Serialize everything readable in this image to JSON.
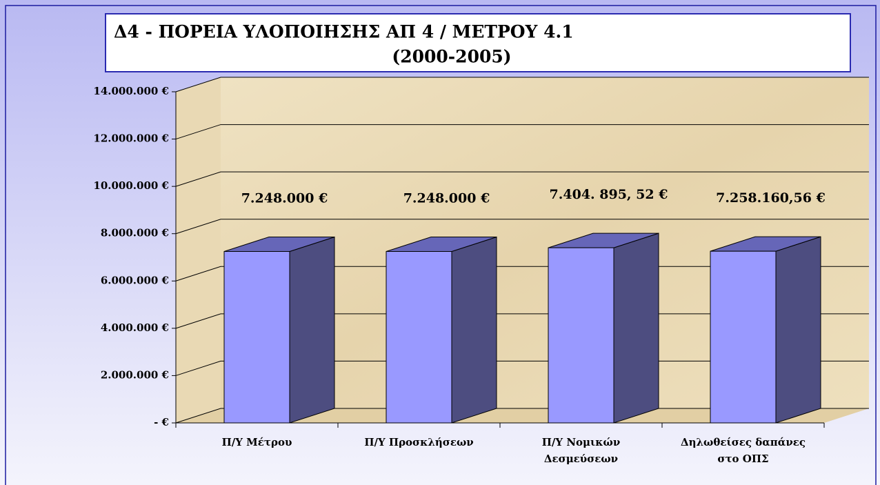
{
  "chart_data": {
    "type": "bar3d",
    "title": "Δ4 - ΠΟΡΕΙΑ ΥΛΟΠΟΙΗΣΗΣ ΑΠ 4 /  ΜΕΤΡΟΥ 4.1",
    "subtitle": "(2000-2005)",
    "categories": [
      "Π/Υ Μέτρου",
      "Π/Υ  Προσκλήσεων",
      "Π/Υ Νομικών Δεσμεύσεων",
      "Δηλωθείσες δαπάνες στο ΟΠΣ"
    ],
    "values": [
      7248000,
      7248000,
      7404895.52,
      7258160.56
    ],
    "value_labels": [
      "7.248.000 €",
      "7.248.000 €",
      "7.404. 895, 52 €",
      "7.258.160,56 €"
    ],
    "color": "#9999ff",
    "ylim": [
      0,
      14000000
    ],
    "yticks": [
      {
        "value": 0,
        "label": "- €"
      },
      {
        "value": 2000000,
        "label": "2.000.000 €"
      },
      {
        "value": 4000000,
        "label": "4.000.000 €"
      },
      {
        "value": 6000000,
        "label": "6.000.000 €"
      },
      {
        "value": 8000000,
        "label": "8.000.000 €"
      },
      {
        "value": 10000000,
        "label": "10.000.000 €"
      },
      {
        "value": 12000000,
        "label": "12.000.000 €"
      },
      {
        "value": 14000000,
        "label": "14.000.000 €"
      }
    ],
    "grid": true
  }
}
